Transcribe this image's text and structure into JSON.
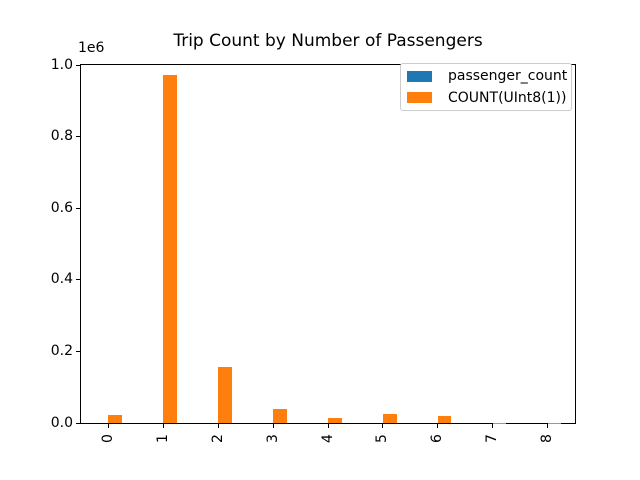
{
  "title": "Trip Count by Number of Passengers",
  "offset_label": "1e6",
  "colors": {
    "blue": "#1f77b4",
    "orange": "#ff7f0e",
    "axis": "#000000",
    "legend_border": "#cccccc",
    "background": "#ffffff"
  },
  "legend": {
    "position": "upper right",
    "entries": [
      {
        "label": "passenger_count",
        "color": "#1f77b4"
      },
      {
        "label": "COUNT(UInt8(1))",
        "color": "#ff7f0e"
      }
    ]
  },
  "chart_data": {
    "type": "bar",
    "title": "Trip Count by Number of Passengers",
    "categories": [
      "0",
      "1",
      "2",
      "3",
      "4",
      "5",
      "6",
      "7",
      "8"
    ],
    "series": [
      {
        "name": "passenger_count",
        "color": "#1f77b4",
        "values": [
          0,
          1,
          2,
          3,
          4,
          5,
          6,
          7,
          8
        ]
      },
      {
        "name": "COUNT(UInt8(1))",
        "color": "#ff7f0e",
        "values": [
          22000,
          972000,
          156000,
          39000,
          15000,
          26000,
          21000,
          600,
          200
        ]
      }
    ],
    "xlabel": "",
    "ylabel": "",
    "ylim": [
      0,
      1000000
    ],
    "ytick_values": [
      0,
      200000,
      400000,
      600000,
      800000,
      1000000
    ],
    "ytick_labels": [
      "0.0",
      "0.2",
      "0.4",
      "0.6",
      "0.8",
      "1.0"
    ],
    "y_offset_multiplier": "1e6",
    "xtick_rotation": 90,
    "grid": false,
    "legend_position": "upper right",
    "bar_width_fraction": 0.25
  }
}
